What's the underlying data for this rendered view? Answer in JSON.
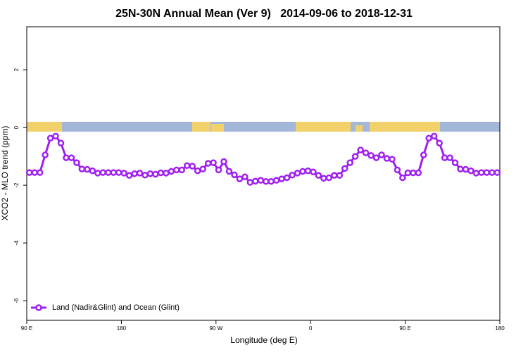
{
  "chart_data": {
    "type": "line",
    "title": "25N-30N Annual Mean (Ver 9)   2014-09-06 to 2018-12-31",
    "x_label": "Longitude (deg E)",
    "y_label": "XCO2 - MLO trend (ppm)",
    "x": [
      92.5,
      97.5,
      102.5,
      107.5,
      112.5,
      117.5,
      122.5,
      127.5,
      132.5,
      137.5,
      142.5,
      147.5,
      152.5,
      157.5,
      162.5,
      167.5,
      172.5,
      177.5,
      182.5,
      187.5,
      192.5,
      197.5,
      202.5,
      207.5,
      212.5,
      217.5,
      222.5,
      227.5,
      232.5,
      237.5,
      242.5,
      247.5,
      252.5,
      257.5,
      262.5,
      267.5,
      272.5,
      277.5,
      282.5,
      287.5,
      292.5,
      297.5,
      302.5,
      307.5,
      312.5,
      317.5,
      322.5,
      327.5,
      332.5,
      337.5,
      342.5,
      347.5,
      352.5,
      357.5,
      362.5,
      367.5,
      372.5,
      377.5,
      382.5,
      387.5,
      392.5,
      397.5,
      402.5,
      407.5,
      412.5,
      417.5,
      422.5,
      427.5,
      432.5,
      437.5,
      442.5,
      447.5,
      452.5,
      457.5,
      462.5,
      467.5,
      472.5,
      477.5,
      482.5,
      487.5,
      492.5,
      497.5,
      502.5,
      507.5,
      512.5,
      517.5,
      522.5,
      527.5,
      532.5,
      537.5
    ],
    "series": [
      {
        "name": "Land (Nadir&Glint) and Ocean (Glint)",
        "color": "#a020f0",
        "values": [
          -1.56,
          -1.56,
          -1.56,
          -0.95,
          -0.37,
          -0.3,
          -0.54,
          -1.05,
          -1.05,
          -1.22,
          -1.44,
          -1.45,
          -1.5,
          -1.58,
          -1.56,
          -1.56,
          -1.56,
          -1.56,
          -1.58,
          -1.66,
          -1.6,
          -1.58,
          -1.65,
          -1.6,
          -1.62,
          -1.57,
          -1.58,
          -1.52,
          -1.47,
          -1.47,
          -1.32,
          -1.34,
          -1.5,
          -1.44,
          -1.24,
          -1.22,
          -1.47,
          -1.18,
          -1.52,
          -1.64,
          -1.78,
          -1.71,
          -1.9,
          -1.86,
          -1.83,
          -1.87,
          -1.87,
          -1.83,
          -1.78,
          -1.74,
          -1.65,
          -1.58,
          -1.52,
          -1.5,
          -1.54,
          -1.66,
          -1.76,
          -1.74,
          -1.66,
          -1.66,
          -1.42,
          -1.22,
          -1.0,
          -0.78,
          -0.88,
          -0.97,
          -1.05,
          -0.95,
          -1.07,
          -1.1,
          -1.47,
          -1.74,
          -1.57,
          -1.57,
          -1.57,
          -0.95,
          -0.37,
          -0.3,
          -0.54,
          -1.05,
          -1.05,
          -1.22,
          -1.44,
          -1.45,
          -1.5,
          -1.58,
          -1.56,
          -1.56,
          -1.56,
          -1.56
        ]
      }
    ],
    "xlim": [
      90,
      540
    ],
    "xticks": [
      {
        "value": 90,
        "label": "90 E"
      },
      180,
      {
        "value": 270,
        "label": "90 W"
      },
      {
        "value": 360,
        "label": "0"
      },
      {
        "value": 450,
        "label": "90 E"
      },
      {
        "value": 540,
        "label": "180"
      }
    ],
    "ylim": [
      -6.68,
      3.49
    ],
    "yticks": [
      -6,
      -4,
      -2,
      0,
      2
    ],
    "legend": "bottom-left"
  }
}
